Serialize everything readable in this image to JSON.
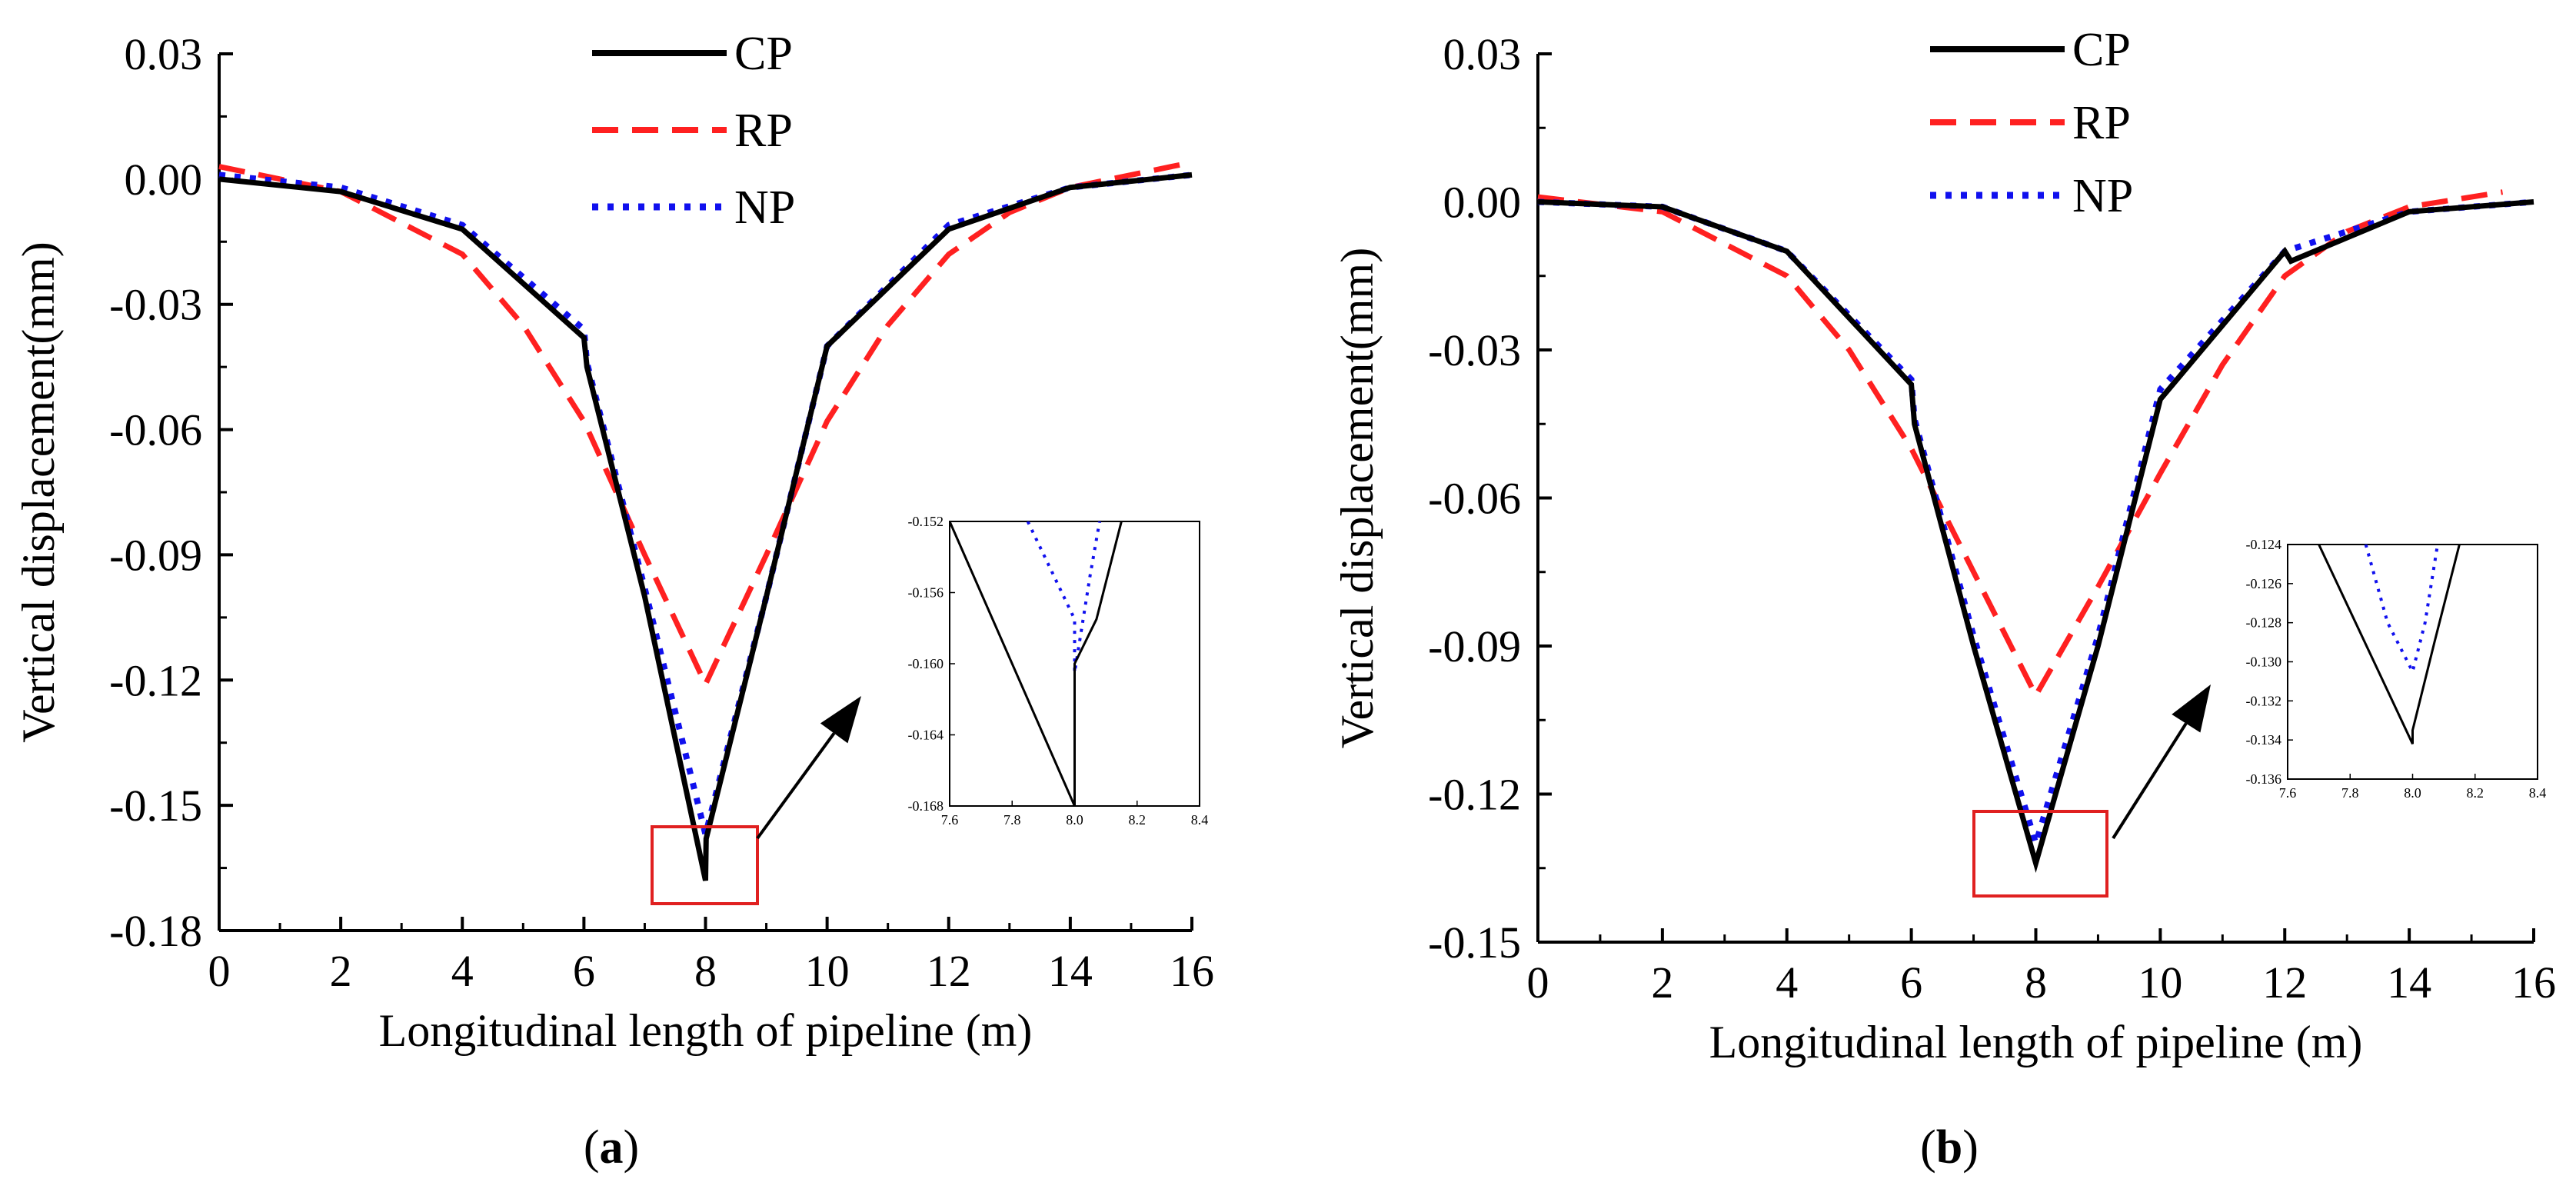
{
  "chart_data": [
    {
      "type": "line",
      "panel_label": "a",
      "xlabel": "Longitudinal length of pipeline (m)",
      "ylabel": "Vertical displacement(mm)",
      "xlim": [
        0,
        16
      ],
      "ylim": [
        -0.18,
        0.03
      ],
      "xticks": [
        "0",
        "2",
        "4",
        "6",
        "8",
        "10",
        "12",
        "14",
        "16"
      ],
      "yticks": [
        "0.03",
        "0.00",
        "-0.03",
        "-0.06",
        "-0.09",
        "-0.12",
        "-0.15",
        "-0.18"
      ],
      "legend": [
        "CP",
        "RP",
        "NP"
      ],
      "series": [
        {
          "name": "CP",
          "color": "#000000",
          "style": "solid",
          "x": [
            0,
            2,
            4,
            6,
            6.05,
            7,
            8,
            8.01,
            9,
            10,
            12,
            14,
            16
          ],
          "y": [
            0.0,
            -0.003,
            -0.012,
            -0.038,
            -0.045,
            -0.1,
            -0.168,
            -0.158,
            -0.1,
            -0.04,
            -0.012,
            -0.002,
            0.001
          ]
        },
        {
          "name": "RP",
          "color": "#ff2020",
          "style": "dashed",
          "x": [
            0,
            2,
            4,
            5,
            6,
            7,
            8,
            9,
            10,
            11,
            12,
            13,
            14,
            16
          ],
          "y": [
            0.003,
            -0.003,
            -0.018,
            -0.035,
            -0.058,
            -0.09,
            -0.121,
            -0.09,
            -0.058,
            -0.035,
            -0.018,
            -0.008,
            -0.002,
            0.004
          ]
        },
        {
          "name": "NP",
          "color": "#1010ee",
          "style": "dotted",
          "x": [
            0,
            2,
            4,
            6,
            6.05,
            7,
            8,
            9,
            10,
            12,
            14,
            16
          ],
          "y": [
            0.001,
            -0.002,
            -0.011,
            -0.036,
            -0.044,
            -0.098,
            -0.157,
            -0.1,
            -0.04,
            -0.011,
            -0.002,
            0.001
          ]
        }
      ],
      "inset": {
        "xlim": [
          7.6,
          8.4
        ],
        "ylim": [
          -0.168,
          -0.152
        ],
        "xticks": [
          "7.6",
          "7.8",
          "8.0",
          "8.2",
          "8.4"
        ],
        "yticks": [
          "-0.152",
          "-0.156",
          "-0.160",
          "-0.164",
          "-0.168"
        ],
        "series": [
          {
            "name": "CP",
            "x": [
              7.6,
              8.0,
              8.0,
              8.07,
              8.15
            ],
            "y": [
              -0.152,
              -0.168,
              -0.16,
              -0.1575,
              -0.152
            ]
          },
          {
            "name": "NP",
            "x": [
              7.85,
              8.0,
              8.0,
              8.05,
              8.08
            ],
            "y": [
              -0.152,
              -0.1575,
              -0.1605,
              -0.155,
              -0.152
            ]
          }
        ]
      }
    },
    {
      "type": "line",
      "panel_label": "b",
      "xlabel": "Longitudinal length of pipeline (m)",
      "ylabel": "Vertical displacement(mm)",
      "xlim": [
        0,
        16
      ],
      "ylim": [
        -0.15,
        0.03
      ],
      "xticks": [
        "0",
        "2",
        "4",
        "6",
        "8",
        "10",
        "12",
        "14",
        "16"
      ],
      "yticks": [
        "0.03",
        "0.00",
        "-0.03",
        "-0.06",
        "-0.09",
        "-0.12",
        "-0.15"
      ],
      "legend": [
        "CP",
        "RP",
        "NP"
      ],
      "series": [
        {
          "name": "CP",
          "color": "#000000",
          "style": "solid",
          "x": [
            0,
            2,
            4,
            6,
            6.05,
            7,
            8,
            9,
            10,
            12,
            12.1,
            14,
            16
          ],
          "y": [
            0.0,
            -0.001,
            -0.01,
            -0.037,
            -0.045,
            -0.09,
            -0.134,
            -0.09,
            -0.04,
            -0.01,
            -0.012,
            -0.002,
            0.0
          ]
        },
        {
          "name": "RP",
          "color": "#ff2020",
          "style": "dashed",
          "x": [
            0,
            2,
            4,
            5,
            6,
            7,
            8,
            9,
            10,
            11,
            12,
            13,
            14,
            15.5
          ],
          "y": [
            0.001,
            -0.002,
            -0.015,
            -0.03,
            -0.05,
            -0.075,
            -0.1,
            -0.078,
            -0.055,
            -0.033,
            -0.015,
            -0.006,
            -0.001,
            0.002
          ]
        },
        {
          "name": "NP",
          "color": "#1010ee",
          "style": "dotted",
          "x": [
            0,
            2,
            4,
            6,
            6.05,
            7,
            8,
            9,
            10,
            12,
            14,
            16
          ],
          "y": [
            0.0,
            -0.001,
            -0.01,
            -0.036,
            -0.044,
            -0.088,
            -0.13,
            -0.088,
            -0.038,
            -0.01,
            -0.002,
            0.0
          ]
        }
      ],
      "inset": {
        "xlim": [
          7.6,
          8.4
        ],
        "ylim": [
          -0.136,
          -0.124
        ],
        "xticks": [
          "7.6",
          "7.8",
          "8.0",
          "8.2",
          "8.4"
        ],
        "yticks": [
          "-0.124",
          "-0.126",
          "-0.128",
          "-0.130",
          "-0.132",
          "-0.134",
          "-0.136"
        ],
        "series": [
          {
            "name": "CP",
            "x": [
              7.7,
              8.0,
              8.0,
              8.07,
              8.15
            ],
            "y": [
              -0.124,
              -0.1342,
              -0.1335,
              -0.129,
              -0.124
            ]
          },
          {
            "name": "NP",
            "x": [
              7.85,
              7.92,
              8.0,
              8.04,
              8.08
            ],
            "y": [
              -0.124,
              -0.128,
              -0.1305,
              -0.128,
              -0.124
            ]
          }
        ]
      }
    }
  ]
}
